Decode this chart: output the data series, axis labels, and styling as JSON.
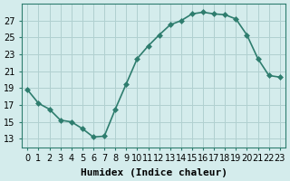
{
  "x": [
    0,
    1,
    2,
    3,
    4,
    5,
    6,
    7,
    8,
    9,
    10,
    11,
    12,
    13,
    14,
    15,
    16,
    17,
    18,
    19,
    20,
    21,
    22,
    23
  ],
  "y": [
    18.8,
    17.2,
    16.5,
    15.2,
    15.0,
    14.2,
    13.2,
    13.3,
    16.5,
    19.5,
    22.5,
    24.0,
    25.3,
    26.5,
    27.0,
    27.8,
    28.0,
    27.8,
    27.7,
    27.2,
    25.3,
    22.5,
    20.5,
    20.3
  ],
  "xlabel": "Humidex (Indice chaleur)",
  "line_color": "#2e7d6e",
  "marker": "D",
  "marker_size": 3,
  "background_color": "#d4ecec",
  "grid_color": "#b0d0d0",
  "ylim": [
    12,
    29
  ],
  "xlim": [
    -0.5,
    23.5
  ],
  "yticks": [
    13,
    15,
    17,
    19,
    21,
    23,
    25,
    27
  ],
  "xticks": [
    0,
    1,
    2,
    3,
    4,
    5,
    6,
    7,
    8,
    9,
    10,
    11,
    12,
    13,
    14,
    15,
    16,
    17,
    18,
    19,
    20,
    21,
    22,
    23
  ],
  "xtick_labels": [
    "0",
    "1",
    "2",
    "3",
    "4",
    "5",
    "6",
    "7",
    "8",
    "9",
    "10",
    "11",
    "12",
    "13",
    "14",
    "15",
    "16",
    "17",
    "18",
    "19",
    "20",
    "21",
    "22",
    "23"
  ],
  "xlabel_fontsize": 8,
  "tick_fontsize": 7,
  "line_width": 1.2
}
